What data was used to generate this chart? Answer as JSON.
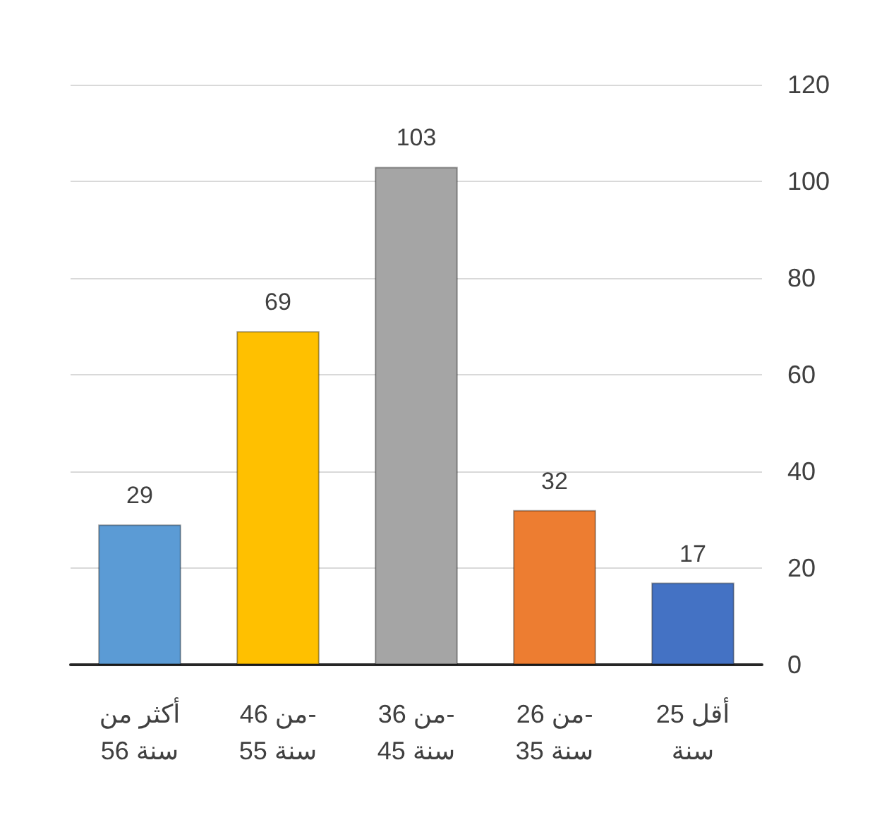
{
  "chart_data": {
    "type": "bar",
    "categories": [
      "أكثر من\n56 سنة",
      "من 46-\n55 سنة",
      "من 36-\n45 سنة",
      "من 26-\n35 سنة",
      "أقل 25\nسنة"
    ],
    "values": [
      29,
      69,
      103,
      32,
      17
    ],
    "colors": [
      "#5b9bd5",
      "#ffc000",
      "#a5a5a5",
      "#ed7d31",
      "#4472c4"
    ],
    "ylim": [
      0,
      120
    ],
    "yticks": [
      0,
      20,
      40,
      60,
      80,
      100,
      120
    ],
    "grid": "y",
    "data_labels": true
  }
}
